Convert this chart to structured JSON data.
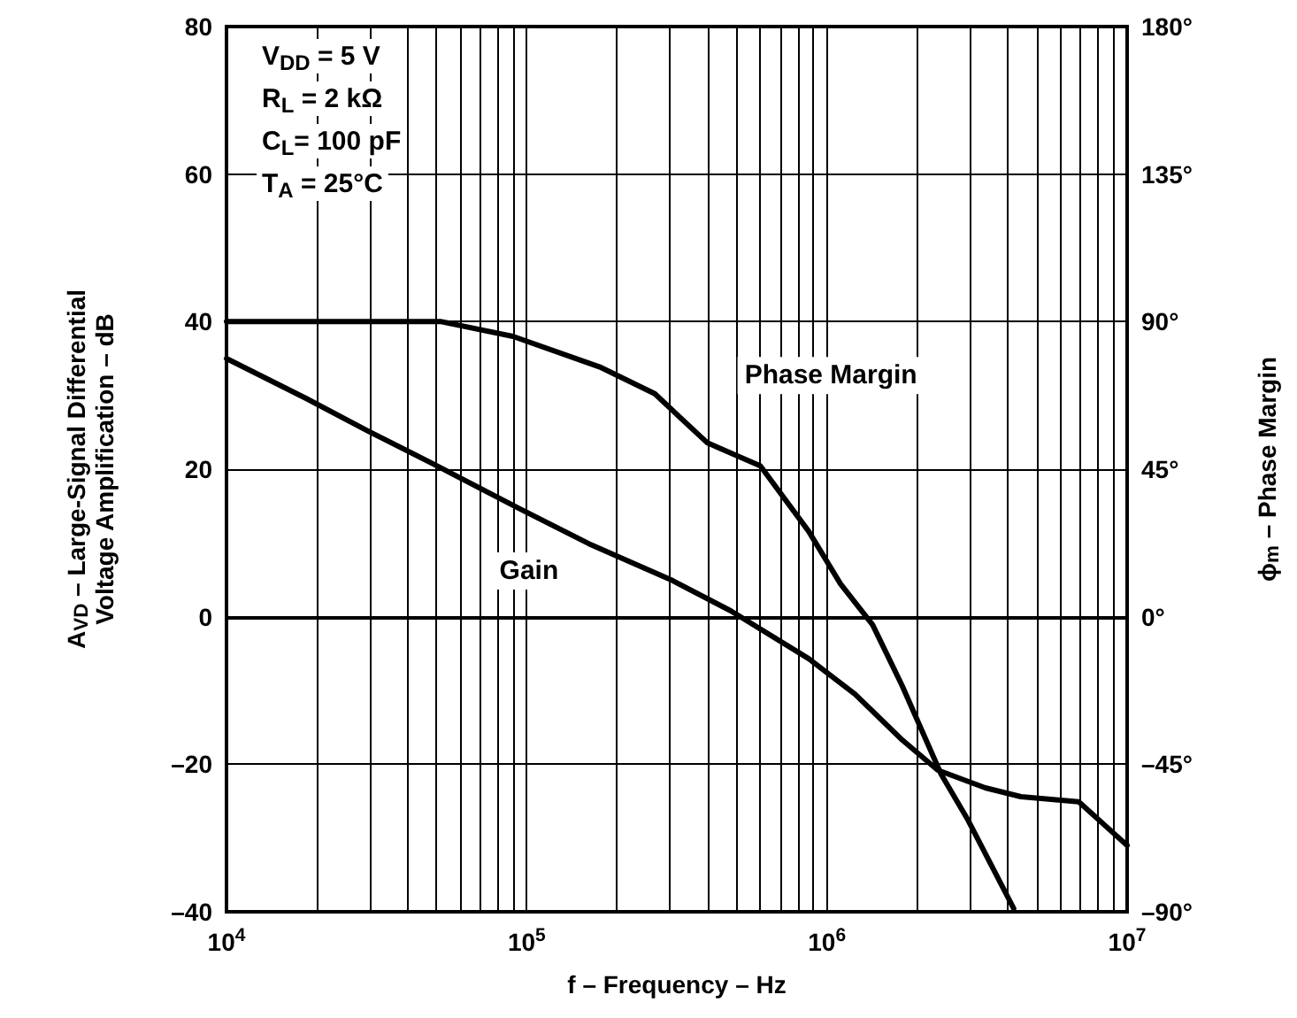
{
  "chart_data": {
    "type": "line",
    "xlabel": "f – Frequency – Hz",
    "ylabel": "A$_{VD}$ – Large-Signal Differential\nVoltage Amplification – dB",
    "y2label": "ϕ$_{m}$ – Phase Margin",
    "annotations": [
      "V$_{DD}$ = 5 V",
      "R$_{L}$ = 2 kΩ",
      "C$_{L}$= 100 pF",
      "T$_{A}$ = 25°C"
    ],
    "log": "x",
    "grid": true,
    "marker": "none",
    "xlim": [
      10000,
      10000000
    ],
    "xticks": [
      {
        "value": 10000,
        "label": "10$^{4}$"
      },
      {
        "value": 20000,
        "label": null
      },
      {
        "value": 30000,
        "label": null
      },
      {
        "value": 40000,
        "label": null
      },
      {
        "value": 50000,
        "label": null
      },
      {
        "value": 60000,
        "label": null
      },
      {
        "value": 70000,
        "label": null
      },
      {
        "value": 80000,
        "label": null
      },
      {
        "value": 90000,
        "label": null
      },
      {
        "value": 100000,
        "label": "10$^{5}$"
      },
      {
        "value": 200000,
        "label": null
      },
      {
        "value": 300000,
        "label": null
      },
      {
        "value": 400000,
        "label": null
      },
      {
        "value": 500000,
        "label": null
      },
      {
        "value": 600000,
        "label": null
      },
      {
        "value": 700000,
        "label": null
      },
      {
        "value": 800000,
        "label": null
      },
      {
        "value": 900000,
        "label": null
      },
      {
        "value": 1000000,
        "label": "10$^{6}$"
      },
      {
        "value": 2000000,
        "label": null
      },
      {
        "value": 3000000,
        "label": null
      },
      {
        "value": 4000000,
        "label": null
      },
      {
        "value": 5000000,
        "label": null
      },
      {
        "value": 6000000,
        "label": null
      },
      {
        "value": 7000000,
        "label": null
      },
      {
        "value": 8000000,
        "label": null
      },
      {
        "value": 9000000,
        "label": null
      },
      {
        "value": 10000000,
        "label": "10$^{7}$"
      }
    ],
    "ylim": [
      -40,
      80
    ],
    "yticks": [
      {
        "value": -40,
        "label": "–40"
      },
      {
        "value": -20,
        "label": "–20"
      },
      0,
      20,
      40,
      60,
      80
    ],
    "y2lim": [
      -90,
      180
    ],
    "y2ticks": [
      {
        "value": -90,
        "label": "–90°"
      },
      {
        "value": -45,
        "label": "–45°"
      },
      {
        "value": 0,
        "label": "0°"
      },
      {
        "value": 45,
        "label": "45°"
      },
      {
        "value": 90,
        "label": "90°"
      },
      {
        "value": 135,
        "label": "135°"
      },
      {
        "value": 180,
        "label": "180°"
      }
    ],
    "series": [
      {
        "name": "Gain",
        "color": "#000000",
        "x": [
          10000,
          18400,
          29200,
          50000,
          94000,
          161000,
          306000,
          478000,
          870000,
          1240000,
          1780000,
          2340000,
          3370000,
          4430000,
          6900000,
          10000000
        ],
        "values": [
          35,
          29.6,
          25.3,
          20.5,
          14.7,
          9.9,
          4.9,
          0.8,
          -5.7,
          -10.5,
          -16.7,
          -20.8,
          -23.2,
          -24.4,
          -25.1,
          -31
        ]
      },
      {
        "name": "Phase Margin",
        "color": "#000000",
        "axis": "y2",
        "x": [
          10000,
          26600,
          52000,
          90000,
          177000,
          267000,
          400000,
          600000,
          870000,
          1110000,
          1420000,
          1780000,
          2400000,
          2950000,
          4190000
        ],
        "values": [
          90,
          90,
          90,
          85.5,
          76,
          68,
          53,
          46,
          26,
          10,
          -2.5,
          -21,
          -48,
          -62,
          -89
        ]
      }
    ]
  }
}
